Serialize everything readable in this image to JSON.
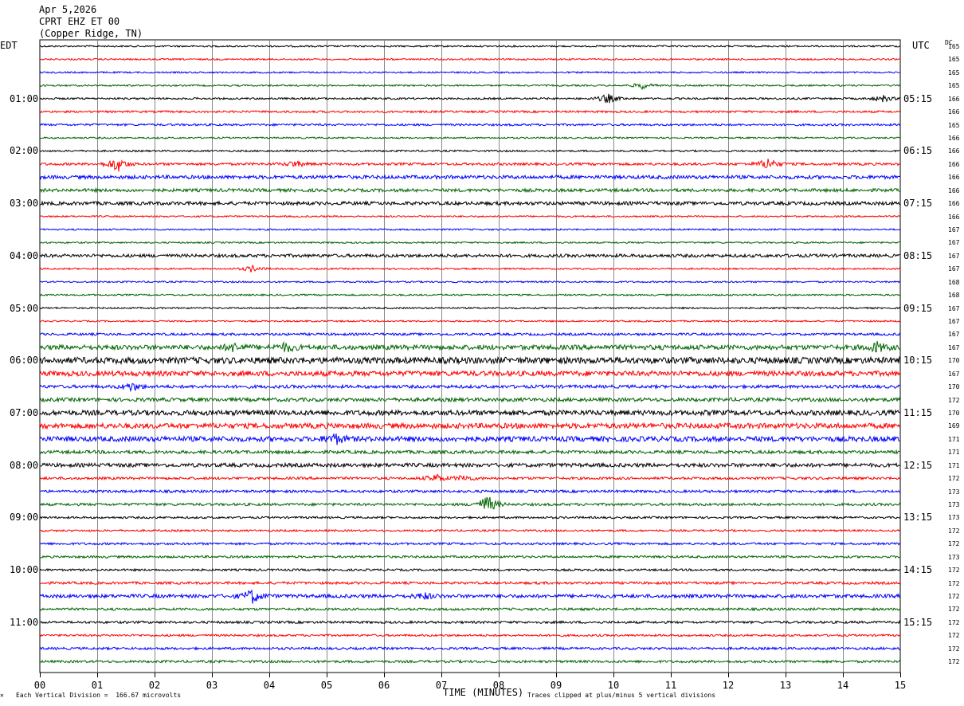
{
  "header": {
    "date": "Apr 5,2026",
    "station": "CPRT EHZ ET 00",
    "location": "(Copper Ridge, TN)"
  },
  "labels": {
    "left_tz": "EDT",
    "right_tz": "UTC",
    "dc_header": "DC",
    "x_title": "TIME (MINUTES)",
    "scale_note": "Each Vertical Division =  166.67 microvolts",
    "clip_note": "Traces clipped at plus/minus 5 vertical divisions"
  },
  "colors": {
    "cycle": [
      "#000000",
      "#ff0000",
      "#0000ff",
      "#006400"
    ],
    "grid": "#000000"
  },
  "chart_data": {
    "type": "line",
    "title": "",
    "xlabel": "TIME (MINUTES)",
    "xlim": [
      0,
      15
    ],
    "x_ticks": [
      "00",
      "01",
      "02",
      "03",
      "04",
      "05",
      "06",
      "07",
      "08",
      "09",
      "10",
      "11",
      "12",
      "13",
      "14",
      "15"
    ],
    "left_hour_labels": [
      {
        "trace": 4,
        "label": "01:00"
      },
      {
        "trace": 8,
        "label": "02:00"
      },
      {
        "trace": 12,
        "label": "03:00"
      },
      {
        "trace": 16,
        "label": "04:00"
      },
      {
        "trace": 20,
        "label": "05:00"
      },
      {
        "trace": 24,
        "label": "06:00"
      },
      {
        "trace": 28,
        "label": "07:00"
      },
      {
        "trace": 32,
        "label": "08:00"
      },
      {
        "trace": 36,
        "label": "09:00"
      },
      {
        "trace": 40,
        "label": "10:00"
      },
      {
        "trace": 44,
        "label": "11:00"
      }
    ],
    "right_hour_labels": [
      {
        "trace": 4,
        "label": "05:15"
      },
      {
        "trace": 8,
        "label": "06:15"
      },
      {
        "trace": 12,
        "label": "07:15"
      },
      {
        "trace": 16,
        "label": "08:15"
      },
      {
        "trace": 20,
        "label": "09:15"
      },
      {
        "trace": 24,
        "label": "10:15"
      },
      {
        "trace": 28,
        "label": "11:15"
      },
      {
        "trace": 32,
        "label": "12:15"
      },
      {
        "trace": 36,
        "label": "13:15"
      },
      {
        "trace": 40,
        "label": "14:15"
      },
      {
        "trace": 44,
        "label": "15:15"
      }
    ],
    "dc_offsets": [
      "165",
      "165",
      "165",
      "165",
      "166",
      "166",
      "165",
      "166",
      "166",
      "166",
      "166",
      "166",
      "166",
      "166",
      "167",
      "167",
      "167",
      "167",
      "168",
      "168",
      "167",
      "167",
      "167",
      "167",
      "170",
      "167",
      "170",
      "172",
      "170",
      "169",
      "171",
      "171",
      "171",
      "172",
      "173",
      "173",
      "173",
      "172",
      "172",
      "173",
      "172",
      "172",
      "172",
      "172",
      "172",
      "172",
      "172",
      "172"
    ],
    "trace_amplitude": [
      1,
      1,
      1,
      1,
      1.2,
      1.3,
      1.3,
      1,
      1.1,
      1.6,
      2.2,
      2,
      2.2,
      1,
      1,
      1,
      2,
      1,
      1,
      1,
      1,
      1,
      1.5,
      3,
      4,
      3.2,
      2,
      2.3,
      3.2,
      3.3,
      3.2,
      2,
      2.4,
      1.6,
      1.6,
      1.6,
      1.3,
      1.2,
      1.4,
      1.4,
      1.3,
      1.6,
      2.2,
      1.5,
      1.5,
      1.3,
      1.5,
      1.5
    ],
    "events": [
      {
        "trace": 3,
        "minute": 10.5,
        "amp": 4
      },
      {
        "trace": 4,
        "minute": 9.9,
        "amp": 6
      },
      {
        "trace": 4,
        "minute": 14.7,
        "amp": 4
      },
      {
        "trace": 9,
        "minute": 1.35,
        "amp": 10
      },
      {
        "trace": 9,
        "minute": 12.7,
        "amp": 8
      },
      {
        "trace": 9,
        "minute": 4.45,
        "amp": 4
      },
      {
        "trace": 17,
        "minute": 3.7,
        "amp": 4
      },
      {
        "trace": 23,
        "minute": 3.4,
        "amp": 5
      },
      {
        "trace": 23,
        "minute": 4.3,
        "amp": 5
      },
      {
        "trace": 23,
        "minute": 14.6,
        "amp": 6
      },
      {
        "trace": 26,
        "minute": 1.6,
        "amp": 5
      },
      {
        "trace": 30,
        "minute": 5.15,
        "amp": 6
      },
      {
        "trace": 33,
        "minute": 6.9,
        "amp": 5
      },
      {
        "trace": 33,
        "minute": 7.4,
        "amp": 4
      },
      {
        "trace": 35,
        "minute": 7.8,
        "amp": 12
      },
      {
        "trace": 42,
        "minute": 3.7,
        "amp": 9
      },
      {
        "trace": 42,
        "minute": 6.7,
        "amp": 4
      }
    ]
  }
}
